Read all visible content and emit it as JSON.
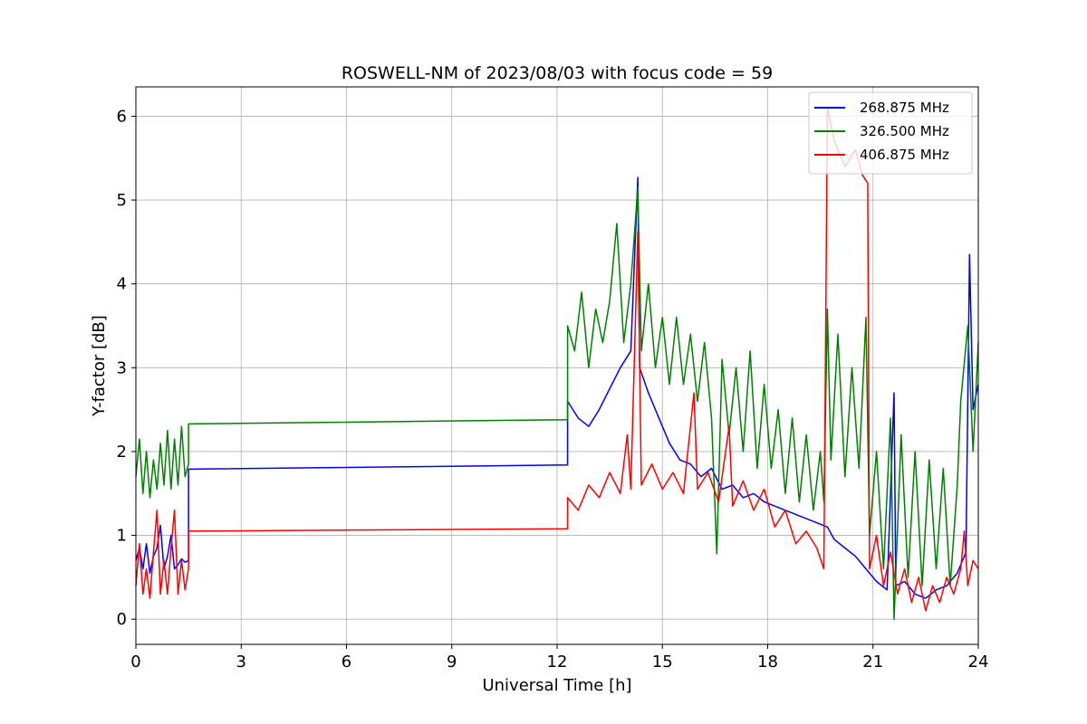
{
  "chart_data": {
    "type": "line",
    "title": "ROSWELL-NM of 2023/08/03 with focus code = 59",
    "xlabel": "Universal Time [h]",
    "ylabel": "Y-factor [dB]",
    "xlim": [
      0,
      24
    ],
    "ylim": [
      -0.3,
      6.35
    ],
    "xticks": [
      0,
      3,
      6,
      9,
      12,
      15,
      18,
      21,
      24
    ],
    "yticks": [
      0,
      1,
      2,
      3,
      4,
      5,
      6
    ],
    "grid": true,
    "legend_position": "top-right",
    "series": [
      {
        "name": "268.875 MHz",
        "color": "#0000ff",
        "points": [
          [
            0.0,
            0.7
          ],
          [
            0.1,
            0.85
          ],
          [
            0.2,
            0.6
          ],
          [
            0.3,
            0.9
          ],
          [
            0.4,
            0.55
          ],
          [
            0.5,
            0.75
          ],
          [
            0.6,
            0.85
          ],
          [
            0.7,
            1.12
          ],
          [
            0.8,
            0.6
          ],
          [
            0.9,
            0.75
          ],
          [
            1.0,
            1.0
          ],
          [
            1.1,
            0.6
          ],
          [
            1.2,
            0.65
          ],
          [
            1.3,
            0.72
          ],
          [
            1.4,
            0.68
          ],
          [
            1.5,
            0.7
          ],
          [
            1.5,
            1.79
          ],
          [
            12.3,
            1.84
          ],
          [
            12.3,
            2.6
          ],
          [
            12.6,
            2.4
          ],
          [
            12.9,
            2.3
          ],
          [
            13.2,
            2.5
          ],
          [
            13.5,
            2.75
          ],
          [
            13.8,
            3.0
          ],
          [
            14.1,
            3.2
          ],
          [
            14.3,
            5.27
          ],
          [
            14.35,
            3.0
          ],
          [
            14.6,
            2.7
          ],
          [
            14.9,
            2.4
          ],
          [
            15.2,
            2.1
          ],
          [
            15.5,
            1.9
          ],
          [
            15.8,
            1.85
          ],
          [
            16.1,
            1.7
          ],
          [
            16.4,
            1.8
          ],
          [
            16.7,
            1.55
          ],
          [
            17.0,
            1.6
          ],
          [
            17.3,
            1.45
          ],
          [
            17.6,
            1.5
          ],
          [
            17.9,
            1.4
          ],
          [
            18.2,
            1.35
          ],
          [
            18.5,
            1.3
          ],
          [
            18.8,
            1.25
          ],
          [
            19.1,
            1.2
          ],
          [
            19.4,
            1.15
          ],
          [
            19.7,
            1.1
          ],
          [
            19.9,
            0.95
          ],
          [
            20.2,
            0.85
          ],
          [
            20.5,
            0.75
          ],
          [
            20.8,
            0.6
          ],
          [
            21.1,
            0.45
          ],
          [
            21.4,
            0.35
          ],
          [
            21.6,
            2.7
          ],
          [
            21.65,
            0.4
          ],
          [
            21.9,
            0.45
          ],
          [
            22.2,
            0.3
          ],
          [
            22.5,
            0.25
          ],
          [
            22.8,
            0.35
          ],
          [
            23.1,
            0.4
          ],
          [
            23.4,
            0.55
          ],
          [
            23.65,
            0.8
          ],
          [
            23.75,
            4.35
          ],
          [
            23.85,
            2.5
          ],
          [
            24.0,
            2.8
          ]
        ]
      },
      {
        "name": "326.500 MHz",
        "color": "#008000",
        "points": [
          [
            0.0,
            1.7
          ],
          [
            0.1,
            2.15
          ],
          [
            0.2,
            1.5
          ],
          [
            0.3,
            2.0
          ],
          [
            0.4,
            1.45
          ],
          [
            0.5,
            1.9
          ],
          [
            0.6,
            1.55
          ],
          [
            0.7,
            2.1
          ],
          [
            0.8,
            1.6
          ],
          [
            0.9,
            2.25
          ],
          [
            1.0,
            1.55
          ],
          [
            1.1,
            2.15
          ],
          [
            1.2,
            1.6
          ],
          [
            1.3,
            2.3
          ],
          [
            1.4,
            1.7
          ],
          [
            1.5,
            1.85
          ],
          [
            1.5,
            2.33
          ],
          [
            12.3,
            2.38
          ],
          [
            12.3,
            3.5
          ],
          [
            12.5,
            3.2
          ],
          [
            12.7,
            3.9
          ],
          [
            12.9,
            3.0
          ],
          [
            13.1,
            3.7
          ],
          [
            13.3,
            3.3
          ],
          [
            13.5,
            3.8
          ],
          [
            13.7,
            4.72
          ],
          [
            13.9,
            3.3
          ],
          [
            14.1,
            4.0
          ],
          [
            14.3,
            5.15
          ],
          [
            14.4,
            3.2
          ],
          [
            14.6,
            4.0
          ],
          [
            14.8,
            3.0
          ],
          [
            15.0,
            3.6
          ],
          [
            15.2,
            2.8
          ],
          [
            15.4,
            3.6
          ],
          [
            15.6,
            2.8
          ],
          [
            15.8,
            3.4
          ],
          [
            16.0,
            2.6
          ],
          [
            16.2,
            3.3
          ],
          [
            16.4,
            2.4
          ],
          [
            16.55,
            0.78
          ],
          [
            16.7,
            3.1
          ],
          [
            16.9,
            2.2
          ],
          [
            17.1,
            3.0
          ],
          [
            17.3,
            2.0
          ],
          [
            17.5,
            3.2
          ],
          [
            17.7,
            1.8
          ],
          [
            17.9,
            2.8
          ],
          [
            18.1,
            1.8
          ],
          [
            18.3,
            2.5
          ],
          [
            18.5,
            1.5
          ],
          [
            18.7,
            2.4
          ],
          [
            18.9,
            1.4
          ],
          [
            19.1,
            2.2
          ],
          [
            19.3,
            1.3
          ],
          [
            19.5,
            2.0
          ],
          [
            19.6,
            1.4
          ],
          [
            19.7,
            3.7
          ],
          [
            19.8,
            1.9
          ],
          [
            20.0,
            3.4
          ],
          [
            20.2,
            1.7
          ],
          [
            20.4,
            3.0
          ],
          [
            20.6,
            1.8
          ],
          [
            20.8,
            3.6
          ],
          [
            20.9,
            1.0
          ],
          [
            21.1,
            2.0
          ],
          [
            21.3,
            0.6
          ],
          [
            21.5,
            2.4
          ],
          [
            21.6,
            0.0
          ],
          [
            21.8,
            2.2
          ],
          [
            22.0,
            0.5
          ],
          [
            22.2,
            2.0
          ],
          [
            22.4,
            0.4
          ],
          [
            22.6,
            1.9
          ],
          [
            22.8,
            0.6
          ],
          [
            23.0,
            1.8
          ],
          [
            23.2,
            0.4
          ],
          [
            23.4,
            1.6
          ],
          [
            23.5,
            2.6
          ],
          [
            23.7,
            3.5
          ],
          [
            23.85,
            2.0
          ],
          [
            24.0,
            3.3
          ]
        ]
      },
      {
        "name": "406.875 MHz",
        "color": "#ff0000",
        "points": [
          [
            0.0,
            0.4
          ],
          [
            0.1,
            0.9
          ],
          [
            0.2,
            0.3
          ],
          [
            0.3,
            0.6
          ],
          [
            0.4,
            0.25
          ],
          [
            0.5,
            0.8
          ],
          [
            0.6,
            1.3
          ],
          [
            0.7,
            0.3
          ],
          [
            0.8,
            0.7
          ],
          [
            0.9,
            0.3
          ],
          [
            1.0,
            0.85
          ],
          [
            1.1,
            1.3
          ],
          [
            1.2,
            0.3
          ],
          [
            1.3,
            0.7
          ],
          [
            1.4,
            0.35
          ],
          [
            1.5,
            0.6
          ],
          [
            1.5,
            1.05
          ],
          [
            12.3,
            1.08
          ],
          [
            12.3,
            1.45
          ],
          [
            12.6,
            1.3
          ],
          [
            12.9,
            1.6
          ],
          [
            13.2,
            1.45
          ],
          [
            13.5,
            1.75
          ],
          [
            13.8,
            1.5
          ],
          [
            14.0,
            2.2
          ],
          [
            14.1,
            1.55
          ],
          [
            14.3,
            4.62
          ],
          [
            14.4,
            1.6
          ],
          [
            14.7,
            1.85
          ],
          [
            15.0,
            1.55
          ],
          [
            15.3,
            1.75
          ],
          [
            15.6,
            1.5
          ],
          [
            15.9,
            2.7
          ],
          [
            16.0,
            1.55
          ],
          [
            16.3,
            1.75
          ],
          [
            16.6,
            1.4
          ],
          [
            16.9,
            2.3
          ],
          [
            17.0,
            1.35
          ],
          [
            17.3,
            1.65
          ],
          [
            17.6,
            1.3
          ],
          [
            17.9,
            1.55
          ],
          [
            18.2,
            1.1
          ],
          [
            18.5,
            1.3
          ],
          [
            18.8,
            0.9
          ],
          [
            19.1,
            1.05
          ],
          [
            19.4,
            0.85
          ],
          [
            19.6,
            0.6
          ],
          [
            19.7,
            6.1
          ],
          [
            19.9,
            5.7
          ],
          [
            20.2,
            5.4
          ],
          [
            20.5,
            5.6
          ],
          [
            20.7,
            5.3
          ],
          [
            20.85,
            5.2
          ],
          [
            20.9,
            0.6
          ],
          [
            21.1,
            1.0
          ],
          [
            21.3,
            0.4
          ],
          [
            21.5,
            0.8
          ],
          [
            21.7,
            0.3
          ],
          [
            21.9,
            0.6
          ],
          [
            22.1,
            0.2
          ],
          [
            22.3,
            0.5
          ],
          [
            22.5,
            0.1
          ],
          [
            22.7,
            0.4
          ],
          [
            22.9,
            0.2
          ],
          [
            23.1,
            0.5
          ],
          [
            23.3,
            0.3
          ],
          [
            23.5,
            0.6
          ],
          [
            23.6,
            1.05
          ],
          [
            23.7,
            0.4
          ],
          [
            23.85,
            0.7
          ],
          [
            24.0,
            0.6
          ]
        ]
      }
    ]
  }
}
